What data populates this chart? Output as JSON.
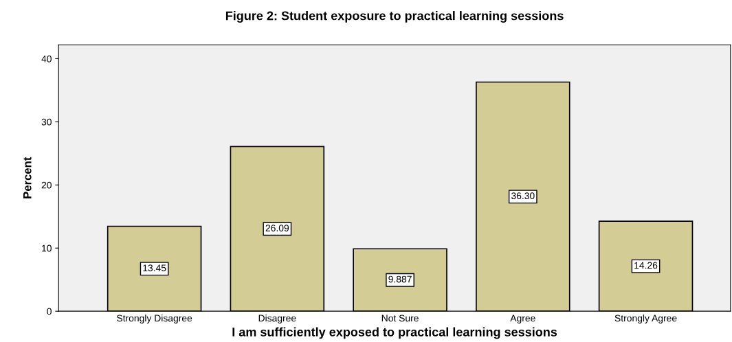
{
  "chart_data": {
    "type": "bar",
    "title": "Figure 2: Student exposure to practical learning sessions",
    "xlabel": "I am sufficiently exposed to practical learning sessions",
    "ylabel": "Percent",
    "categories": [
      "Strongly Disagree",
      "Disagree",
      "Not Sure",
      "Agree",
      "Strongly Agree"
    ],
    "values": [
      13.45,
      26.09,
      9.887,
      36.3,
      14.26
    ],
    "value_labels": [
      "13.45",
      "26.09",
      "9.887",
      "36.30",
      "14.26"
    ],
    "color": "#d3cd95",
    "ylim": [
      0,
      42.2
    ],
    "yticks": [
      0,
      10,
      20,
      30,
      40
    ],
    "grid": false,
    "legend": false
  }
}
